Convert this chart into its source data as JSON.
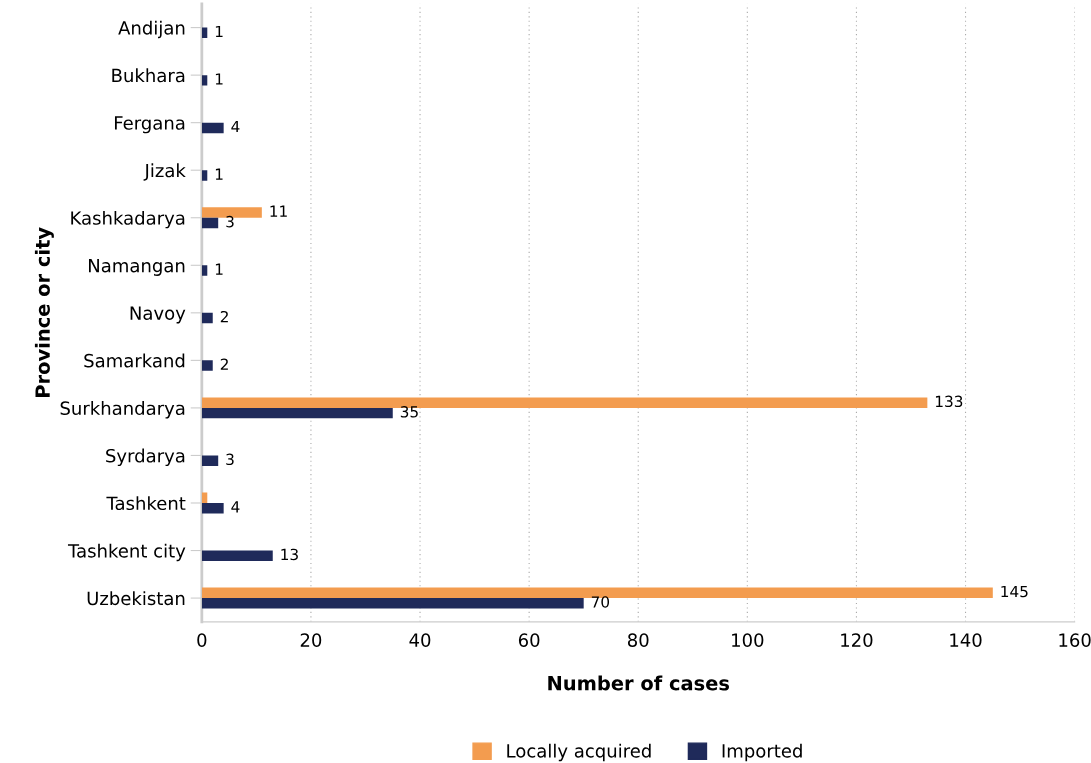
{
  "chart_data": {
    "type": "bar",
    "orientation": "horizontal",
    "xlabel": "Number of cases",
    "ylabel": "Province or city",
    "categories": [
      "Andijan",
      "Bukhara",
      "Fergana",
      "Jizak",
      "Kashkadarya",
      "Namangan",
      "Navoy",
      "Samarkand",
      "Surkhandarya",
      "Syrdarya",
      "Tashkent",
      "Tashkent city",
      "Uzbekistan"
    ],
    "series": [
      {
        "name": "Locally acquired",
        "color": "#f39c4f",
        "values": [
          null,
          null,
          null,
          null,
          11,
          null,
          null,
          null,
          133,
          null,
          1,
          null,
          145
        ],
        "value_labels": [
          null,
          null,
          null,
          null,
          "11",
          null,
          null,
          null,
          "133",
          null,
          null,
          null,
          "145"
        ]
      },
      {
        "name": "Imported",
        "color": "#1f2a5a",
        "values": [
          1,
          1,
          4,
          1,
          3,
          1,
          2,
          2,
          35,
          3,
          4,
          13,
          70
        ],
        "value_labels": [
          "1",
          "1",
          "4",
          "1",
          "3",
          "1",
          "2",
          "2",
          "35",
          "3",
          "4",
          "13",
          "70"
        ]
      }
    ],
    "xlim": [
      0,
      160
    ],
    "xticks": [
      0,
      20,
      40,
      60,
      80,
      100,
      120,
      140,
      160
    ],
    "grid": "x",
    "legend": "bottom"
  }
}
